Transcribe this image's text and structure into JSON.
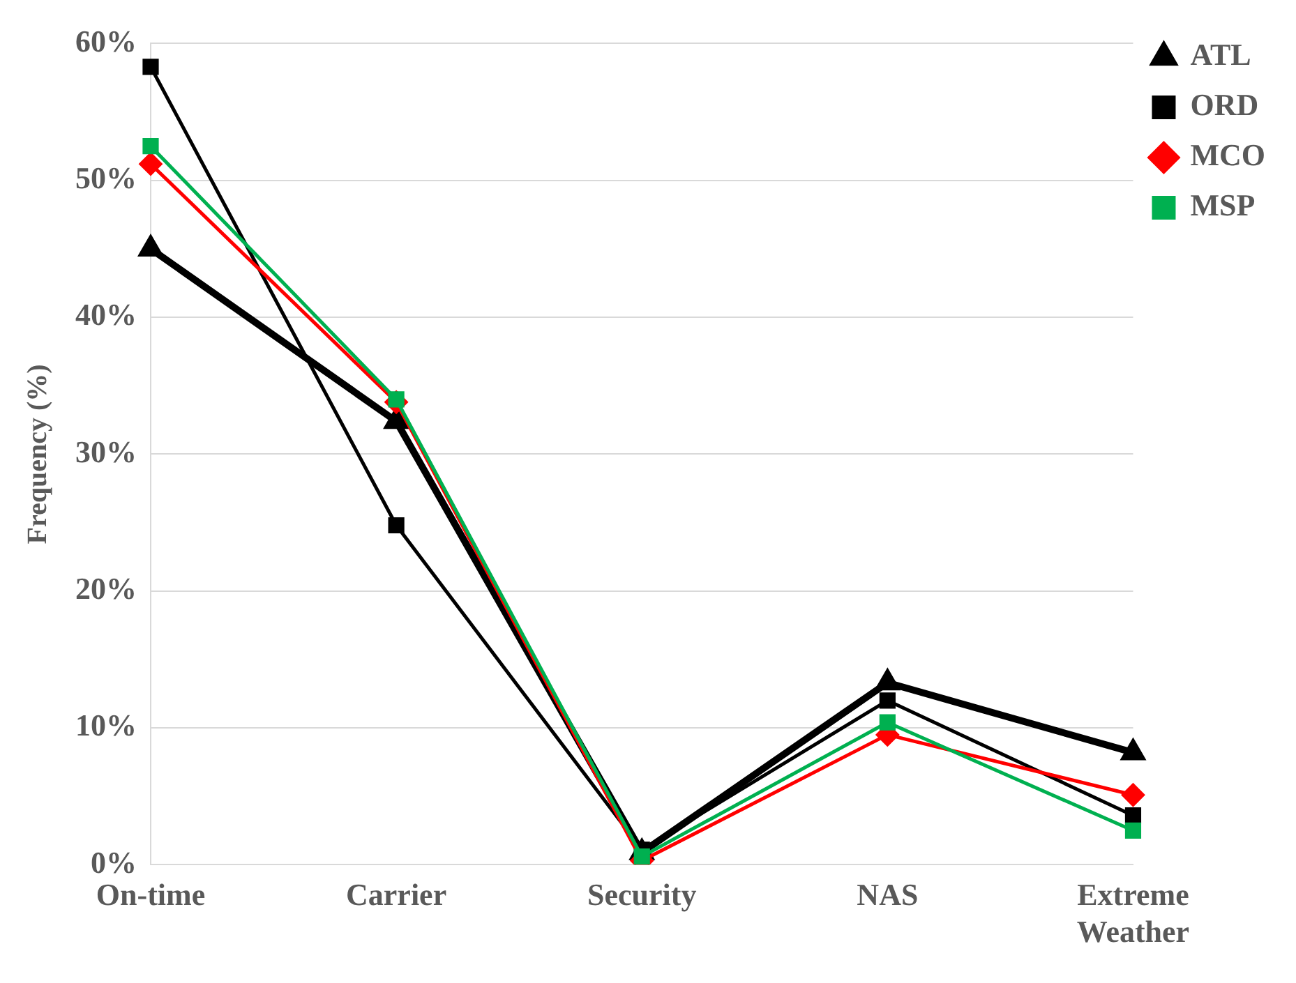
{
  "chart_data": {
    "type": "line",
    "ylabel": "Frequency (%)",
    "categories": [
      "On-time",
      "Carrier",
      "Security",
      "NAS",
      "Extreme Weather"
    ],
    "series": [
      {
        "name": "ATL",
        "color": "#000000",
        "marker": "triangle",
        "values": [
          45.0,
          32.4,
          0.9,
          13.3,
          8.2
        ]
      },
      {
        "name": "ORD",
        "color": "#000000",
        "marker": "square",
        "values": [
          58.3,
          24.8,
          1.1,
          12.0,
          3.6
        ]
      },
      {
        "name": "MCO",
        "color": "#ff0000",
        "marker": "diamond",
        "values": [
          51.2,
          33.8,
          0.3,
          9.5,
          5.1
        ]
      },
      {
        "name": "MSP",
        "color": "#00b050",
        "marker": "square",
        "values": [
          52.5,
          34.0,
          0.6,
          10.4,
          2.5
        ]
      }
    ],
    "ylim": [
      0,
      60
    ],
    "yticks": [
      {
        "value": 0,
        "label": "0%"
      },
      {
        "value": 10,
        "label": "10%"
      },
      {
        "value": 20,
        "label": "20%"
      },
      {
        "value": 30,
        "label": "30%"
      },
      {
        "value": 40,
        "label": "40%"
      },
      {
        "value": 50,
        "label": "50%"
      },
      {
        "value": 60,
        "label": "60%"
      }
    ],
    "grid": "y",
    "legend": "top right",
    "line_style": "solid"
  }
}
